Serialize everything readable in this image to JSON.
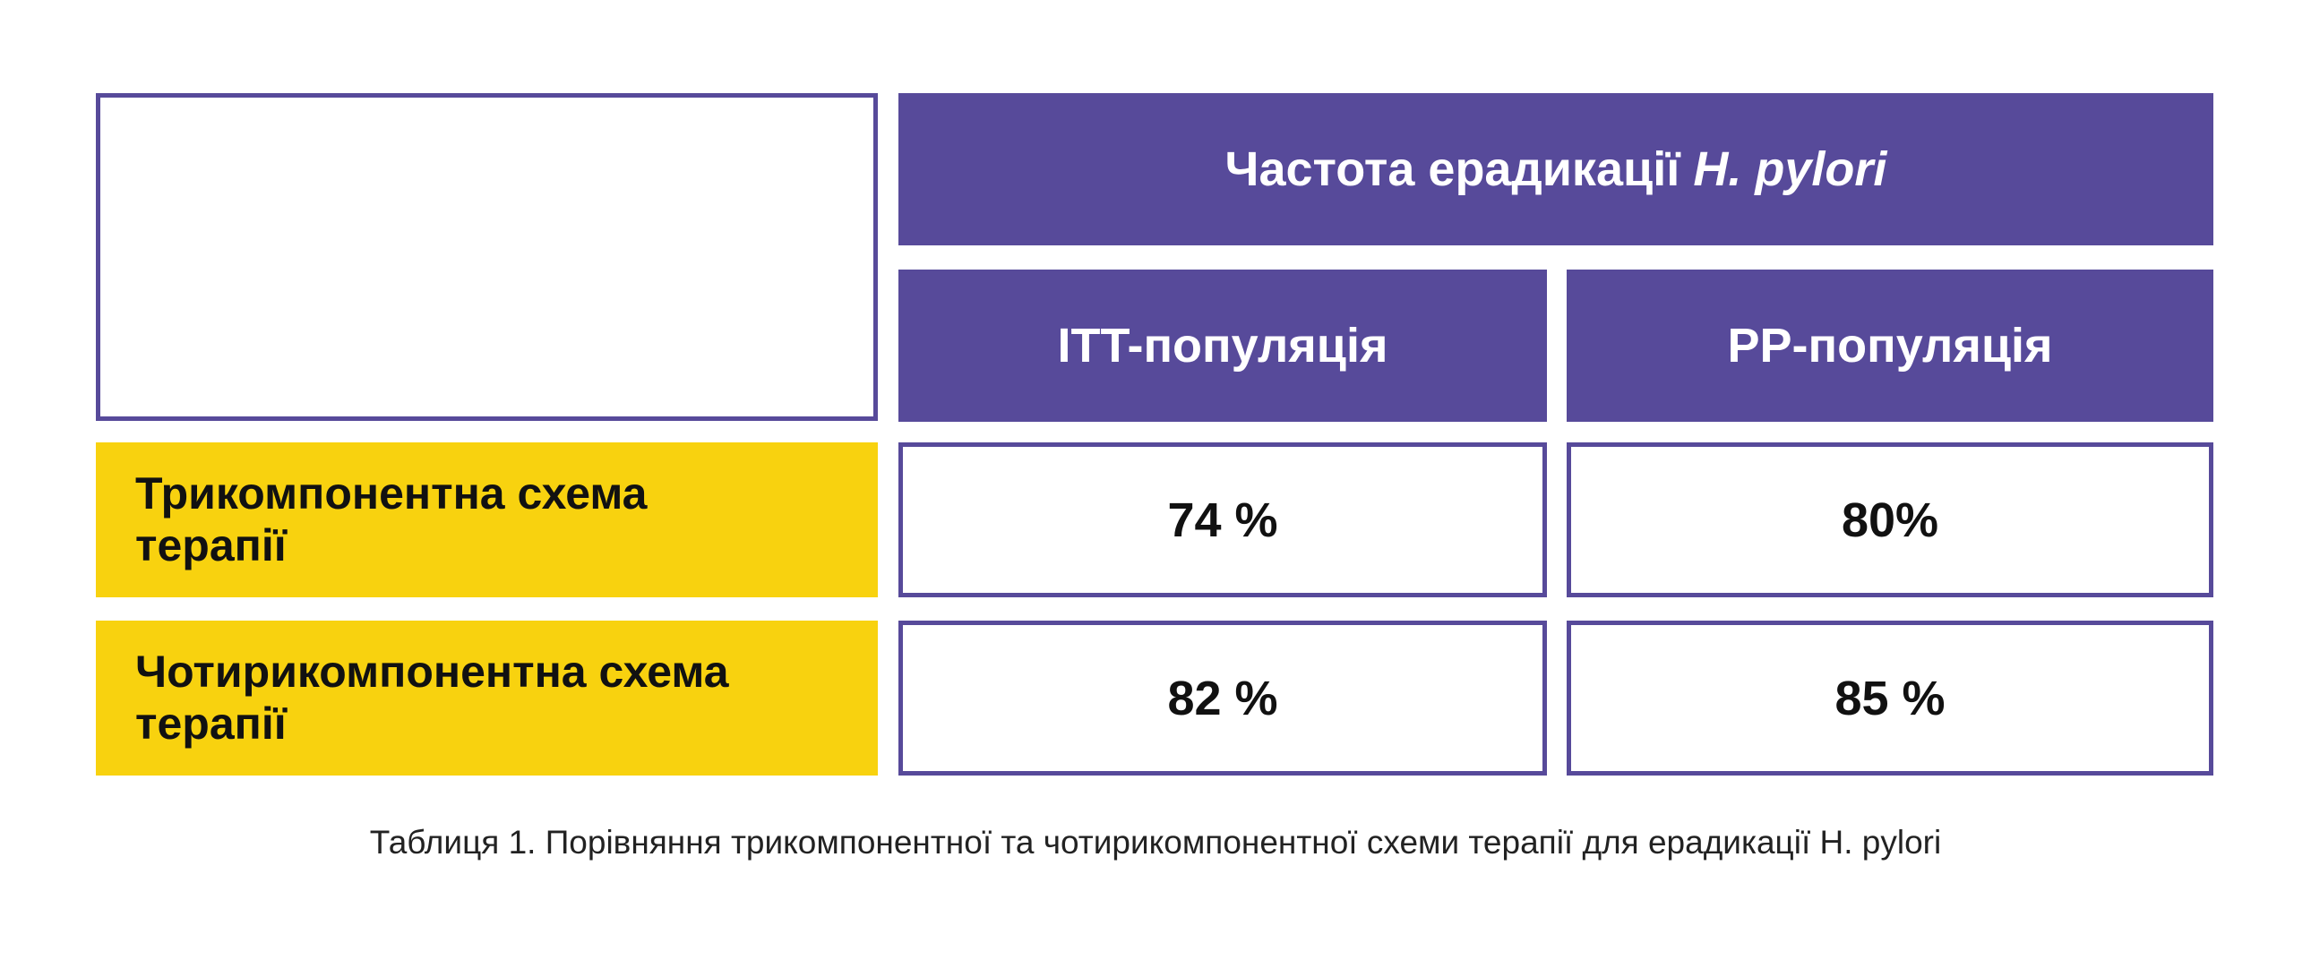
{
  "colors": {
    "purple": "#574a9a",
    "yellow": "#f8d20f"
  },
  "table": {
    "header": {
      "title": "Частота ерадикації",
      "title_italic": "H. pylori"
    },
    "columns": [
      "ITT-популяція",
      "PP-популяція"
    ],
    "rows": [
      {
        "label_line1": "Трикомпонентна схема",
        "label_line2": "терапії",
        "values": [
          "74 %",
          "80%"
        ]
      },
      {
        "label_line1": "Чотирикомпонентна схема",
        "label_line2": "терапії",
        "values": [
          "82 %",
          "85 %"
        ]
      }
    ]
  },
  "caption": "Таблиця 1. Порівняння трикомпонентної та чотирикомпонентної схеми терапії для ерадикації H. pylori"
}
